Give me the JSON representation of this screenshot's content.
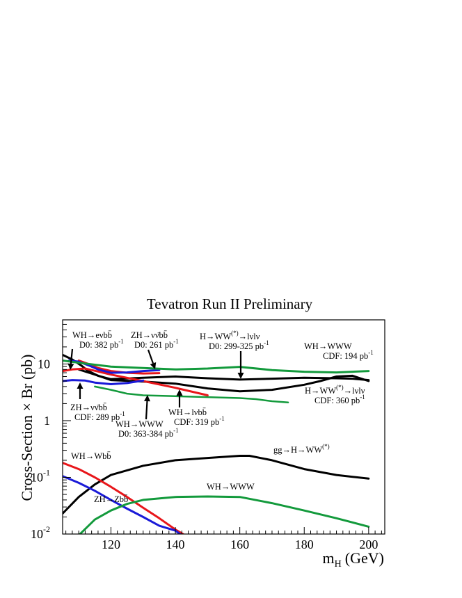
{
  "chart_data": {
    "type": "line",
    "title": "Tevatron Run II Preliminary",
    "xlabel": "m_H (GeV)",
    "xlabel_main": "m",
    "xlabel_sub": "H",
    "xlabel_unit": "(GeV)",
    "ylabel": "Cross-Section × Br (pb)",
    "xlim": [
      105,
      205
    ],
    "ylim": [
      0.01,
      60
    ],
    "yscale": "log",
    "grid": false,
    "x_ticks": [
      120,
      140,
      160,
      180,
      200
    ],
    "y_ticks": [
      {
        "value": 0.01,
        "base": "10",
        "exp": "-2"
      },
      {
        "value": 0.1,
        "base": "10",
        "exp": "-1"
      },
      {
        "value": 1,
        "base": "1",
        "exp": ""
      },
      {
        "value": 10,
        "base": "10",
        "exp": ""
      }
    ],
    "colors": {
      "black": "#000000",
      "red": "#e8161a",
      "blue": "#1a1ad8",
      "green": "#139a3c"
    },
    "series": [
      {
        "color": "black",
        "width": 3,
        "points": [
          [
            105,
            14.5
          ],
          [
            108,
            12
          ],
          [
            111,
            9.2
          ],
          [
            113,
            7.5
          ],
          [
            116,
            6.2
          ],
          [
            120,
            5.4
          ],
          [
            130,
            5.7
          ],
          [
            140,
            6.0
          ],
          [
            150,
            5.6
          ],
          [
            160,
            5.3
          ],
          [
            170,
            5.5
          ],
          [
            180,
            5.7
          ],
          [
            190,
            5.6
          ],
          [
            195,
            5.5
          ],
          [
            200,
            5.2
          ]
        ]
      },
      {
        "color": "black",
        "width": 3,
        "points": [
          [
            110,
            8.0
          ],
          [
            115,
            6.5
          ],
          [
            120,
            5.2
          ],
          [
            130,
            4.9
          ],
          [
            140,
            4.5
          ],
          [
            150,
            3.7
          ],
          [
            160,
            3.3
          ],
          [
            170,
            3.5
          ],
          [
            180,
            4.3
          ],
          [
            185,
            5.0
          ],
          [
            190,
            6.0
          ],
          [
            195,
            6.2
          ],
          [
            200,
            5.0
          ]
        ]
      },
      {
        "color": "black",
        "width": 3,
        "points": [
          [
            105,
            0.023
          ],
          [
            110,
            0.045
          ],
          [
            115,
            0.075
          ],
          [
            120,
            0.11
          ],
          [
            130,
            0.16
          ],
          [
            140,
            0.2
          ],
          [
            150,
            0.22
          ],
          [
            160,
            0.24
          ],
          [
            163,
            0.24
          ],
          [
            170,
            0.2
          ],
          [
            180,
            0.14
          ],
          [
            190,
            0.11
          ],
          [
            200,
            0.095
          ]
        ]
      },
      {
        "color": "red",
        "width": 3,
        "points": [
          [
            105,
            7.5
          ],
          [
            108,
            8.0
          ],
          [
            112,
            8.3
          ],
          [
            115,
            7.6
          ],
          [
            120,
            6.5
          ],
          [
            130,
            5.0
          ],
          [
            140,
            3.8
          ],
          [
            150,
            2.8
          ]
        ]
      },
      {
        "color": "red",
        "width": 3,
        "points": [
          [
            110,
            11.5
          ],
          [
            113,
            10.0
          ],
          [
            116,
            8.5
          ],
          [
            120,
            7.5
          ],
          [
            125,
            7.0
          ],
          [
            130,
            6.8
          ],
          [
            135,
            6.9
          ]
        ]
      },
      {
        "color": "red",
        "width": 3,
        "points": [
          [
            105,
            0.18
          ],
          [
            110,
            0.14
          ],
          [
            115,
            0.1
          ],
          [
            120,
            0.068
          ],
          [
            125,
            0.045
          ],
          [
            130,
            0.029
          ],
          [
            135,
            0.019
          ],
          [
            140,
            0.012
          ],
          [
            143,
            0.0095
          ]
        ]
      },
      {
        "color": "blue",
        "width": 3,
        "points": [
          [
            105,
            5.0
          ],
          [
            108,
            5.2
          ],
          [
            112,
            5.1
          ],
          [
            115,
            4.7
          ],
          [
            120,
            4.4
          ],
          [
            125,
            4.6
          ],
          [
            130,
            5.1
          ]
        ]
      },
      {
        "color": "blue",
        "width": 3,
        "points": [
          [
            107,
            11.5
          ],
          [
            110,
            11.0
          ],
          [
            113,
            9.5
          ],
          [
            116,
            8.0
          ],
          [
            120,
            7.0
          ],
          [
            125,
            7.1
          ],
          [
            130,
            7.5
          ],
          [
            135,
            7.8
          ]
        ]
      },
      {
        "color": "blue",
        "width": 3,
        "points": [
          [
            105,
            0.105
          ],
          [
            110,
            0.08
          ],
          [
            115,
            0.058
          ],
          [
            120,
            0.04
          ],
          [
            125,
            0.028
          ],
          [
            130,
            0.02
          ],
          [
            135,
            0.014
          ],
          [
            140,
            0.0115
          ],
          [
            142,
            0.0095
          ]
        ]
      },
      {
        "color": "green",
        "width": 3,
        "points": [
          [
            105,
            11.5
          ],
          [
            110,
            10.5
          ],
          [
            120,
            9.0
          ],
          [
            130,
            8.5
          ],
          [
            140,
            8.0
          ],
          [
            150,
            8.3
          ],
          [
            160,
            8.9
          ],
          [
            170,
            7.8
          ],
          [
            180,
            7.3
          ],
          [
            190,
            7.1
          ],
          [
            200,
            7.5
          ]
        ]
      },
      {
        "color": "green",
        "width": 2.5,
        "points": [
          [
            115,
            4.0
          ],
          [
            120,
            3.5
          ],
          [
            125,
            3.0
          ],
          [
            130,
            2.8
          ],
          [
            140,
            2.7
          ],
          [
            150,
            2.6
          ],
          [
            160,
            2.5
          ],
          [
            165,
            2.4
          ],
          [
            170,
            2.2
          ],
          [
            175,
            2.1
          ]
        ]
      },
      {
        "color": "green",
        "width": 3,
        "points": [
          [
            110,
            0.0095
          ],
          [
            115,
            0.018
          ],
          [
            120,
            0.026
          ],
          [
            125,
            0.034
          ],
          [
            130,
            0.04
          ],
          [
            140,
            0.045
          ],
          [
            150,
            0.046
          ],
          [
            160,
            0.045
          ],
          [
            170,
            0.035
          ],
          [
            180,
            0.026
          ],
          [
            190,
            0.019
          ],
          [
            200,
            0.0135
          ]
        ]
      }
    ],
    "annotations": [
      {
        "id": "wh-enubb",
        "lines": [
          {
            "text": "WH→eνbb̄"
          },
          {
            "text": "D0: 382 pb",
            "sup": "-1"
          }
        ]
      },
      {
        "id": "zh-nunubb-d0",
        "lines": [
          {
            "text": "ZH→νν̄bb̄"
          },
          {
            "text": "D0: 261 pb",
            "sup": "-1"
          }
        ]
      },
      {
        "id": "h-ww-d0",
        "lines": [
          {
            "text": "H→WW",
            "sup": "(*)",
            "tail": "→lνlν"
          },
          {
            "text": "D0: 299-325 pb",
            "sup": "-1"
          }
        ]
      },
      {
        "id": "wh-www-cdf",
        "lines": [
          {
            "text": "WH→WWW"
          },
          {
            "text": "CDF: 194 pb",
            "sup": "-1"
          }
        ]
      },
      {
        "id": "zh-nunubb-cdf",
        "lines": [
          {
            "text": "ZH→νν̄bb̄"
          },
          {
            "text": "CDF: 289 pb",
            "sup": "-1"
          }
        ]
      },
      {
        "id": "wh-www-d0",
        "lines": [
          {
            "text": "WH→WWW"
          },
          {
            "text": "D0: 363-384 pb",
            "sup": "-1"
          }
        ]
      },
      {
        "id": "wh-lnubb-cdf",
        "lines": [
          {
            "text": "WH→lνbb̄"
          },
          {
            "text": "CDF: 319 pb",
            "sup": "-1"
          }
        ]
      },
      {
        "id": "h-ww-cdf",
        "lines": [
          {
            "text": "H→WW",
            "sup": "(*)",
            "tail": "→lνlν"
          },
          {
            "text": "CDF: 360 pb",
            "sup": "-1"
          }
        ]
      },
      {
        "id": "gg-h-ww",
        "lines": [
          {
            "text": "gg→H→WW",
            "sup": "(*)"
          }
        ]
      },
      {
        "id": "wh-wbb",
        "lines": [
          {
            "text": "WH→Wbb̄"
          }
        ]
      },
      {
        "id": "zh-zbb",
        "lines": [
          {
            "text": "ZH→Zbb̄"
          }
        ]
      },
      {
        "id": "wh-www-theory",
        "lines": [
          {
            "text": "WH→WWW"
          }
        ]
      }
    ]
  }
}
